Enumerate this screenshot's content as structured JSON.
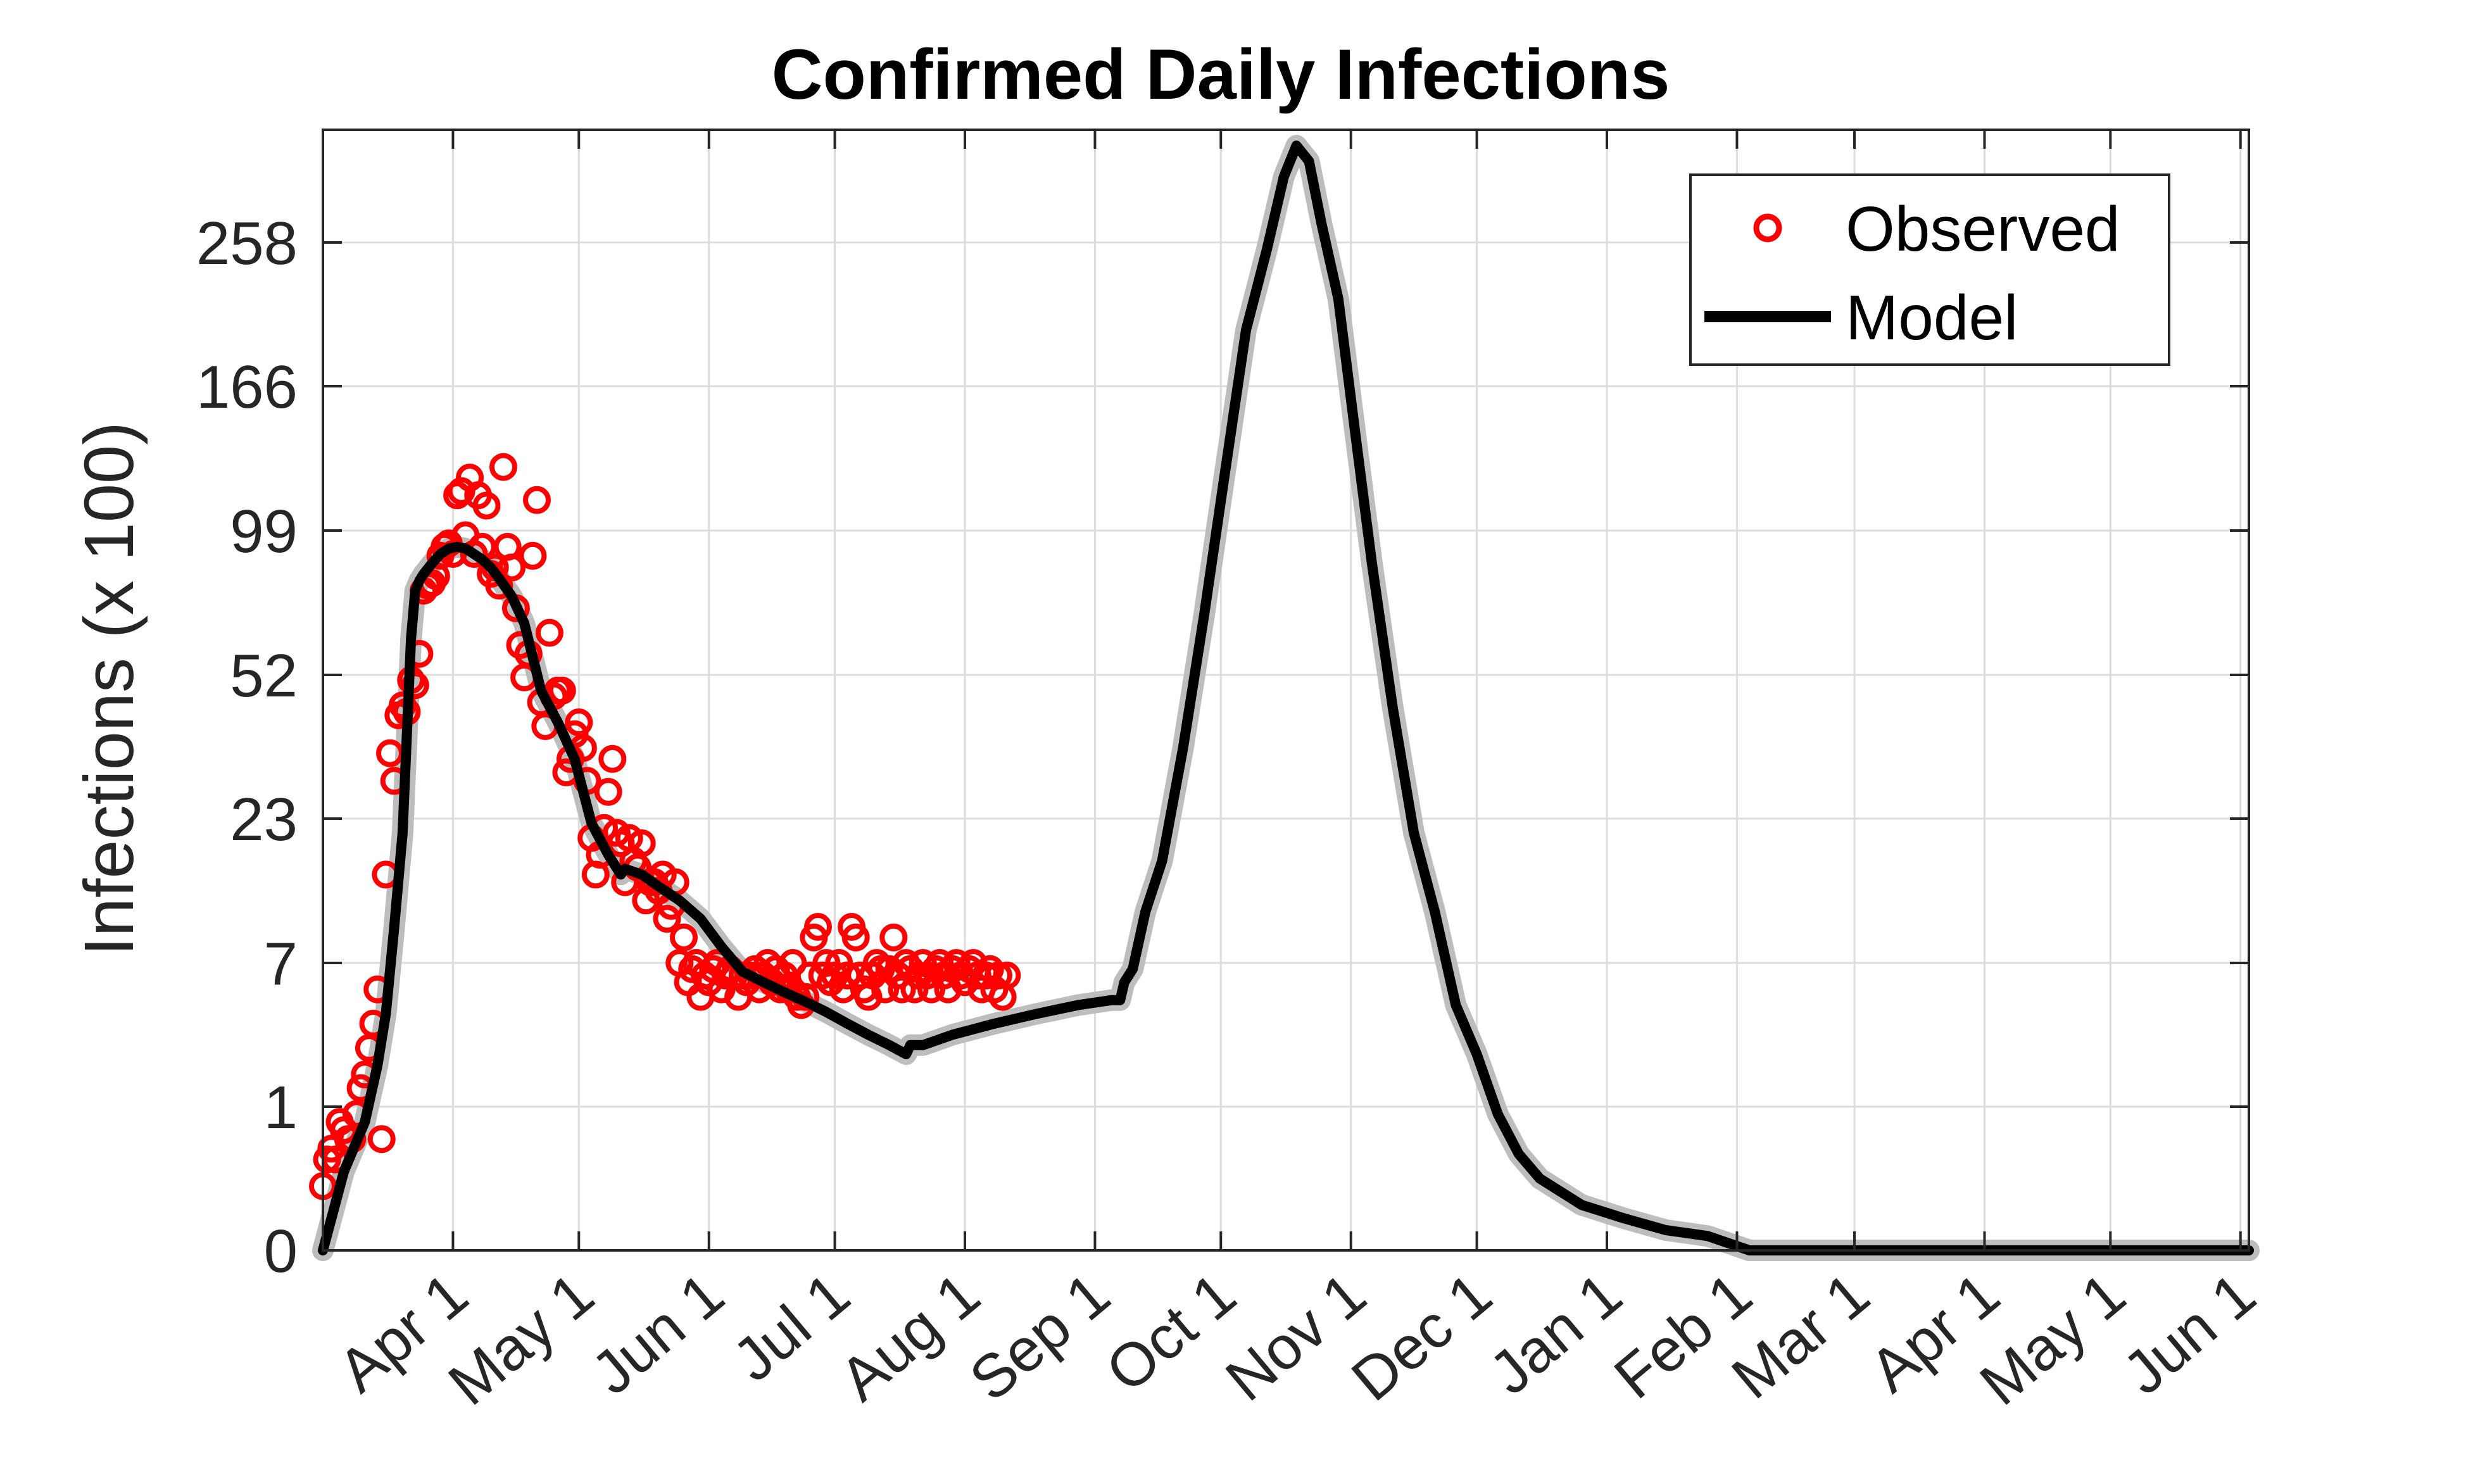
{
  "chart_data": {
    "type": "line",
    "title": "Confirmed Daily Infections",
    "xlabel": "",
    "ylabel": "Infections (x 100)",
    "y_tick_labels": [
      "0",
      "1",
      "7",
      "23",
      "52",
      "99",
      "166",
      "258"
    ],
    "y_tick_values": [
      0,
      1,
      7,
      23,
      52,
      99,
      166,
      258
    ],
    "y_scale_note": "axis is nonlinear (approximately square-root spacing); tick positions are evenly spaced",
    "x_axis_start_date": "2020-03-01",
    "x_axis_end_date": "2021-06-03",
    "x_tick_labels": [
      "Apr 1",
      "May 1",
      "Jun 1",
      "Jul 1",
      "Aug 1",
      "Sep 1",
      "Oct 1",
      "Nov 1",
      "Dec 1",
      "Jan 1",
      "Feb 1",
      "Mar 1",
      "Apr 1",
      "May 1",
      "Jun 1"
    ],
    "x_tick_days": [
      31,
      61,
      92,
      122,
      153,
      184,
      214,
      245,
      275,
      306,
      337,
      365,
      396,
      426,
      457
    ],
    "grid": true,
    "legend_position": "top-right",
    "series": [
      {
        "name": "Observed",
        "style": "red circles",
        "color": "#ff0000",
        "points": [
          [
            0,
            0.2
          ],
          [
            1,
            0.4
          ],
          [
            2,
            0.5
          ],
          [
            3,
            0.4
          ],
          [
            4,
            0.8
          ],
          [
            5,
            0.7
          ],
          [
            6,
            0.6
          ],
          [
            7,
            0.6
          ],
          [
            8,
            0.9
          ],
          [
            9,
            1.1
          ],
          [
            10,
            1.3
          ],
          [
            11,
            2
          ],
          [
            12,
            3
          ],
          [
            13,
            5
          ],
          [
            14,
            0.6
          ],
          [
            15,
            13
          ],
          [
            16,
            29
          ],
          [
            17,
            25
          ],
          [
            18,
            38
          ],
          [
            19,
            41
          ],
          [
            20,
            39
          ],
          [
            21,
            50
          ],
          [
            22,
            48
          ],
          [
            23,
            53
          ],
          [
            24,
            68
          ],
          [
            25,
            70
          ],
          [
            26,
            71
          ],
          [
            27,
            74
          ],
          [
            28,
            84
          ],
          [
            29,
            89
          ],
          [
            30,
            91
          ],
          [
            31,
            85
          ],
          [
            32,
            103
          ],
          [
            33,
            104
          ],
          [
            34,
            96
          ],
          [
            35,
            108
          ],
          [
            36,
            85
          ],
          [
            37,
            103
          ],
          [
            38,
            89
          ],
          [
            39,
            101
          ],
          [
            40,
            75
          ],
          [
            41,
            78
          ],
          [
            42,
            70
          ],
          [
            43,
            112
          ],
          [
            44,
            89
          ],
          [
            45,
            78
          ],
          [
            46,
            62
          ],
          [
            47,
            54
          ],
          [
            48,
            51
          ],
          [
            49,
            53
          ],
          [
            50,
            84
          ],
          [
            51,
            102
          ],
          [
            52,
            42
          ],
          [
            53,
            35
          ],
          [
            54,
            56
          ],
          [
            55,
            44
          ],
          [
            56,
            46
          ],
          [
            57,
            46
          ],
          [
            58,
            26
          ],
          [
            59,
            28
          ],
          [
            60,
            33
          ],
          [
            61,
            36
          ],
          [
            62,
            30
          ],
          [
            63,
            25
          ],
          [
            64,
            19
          ],
          [
            65,
            13
          ],
          [
            66,
            16
          ],
          [
            67,
            21
          ],
          [
            68,
            24
          ],
          [
            69,
            28
          ],
          [
            70,
            20
          ],
          [
            71,
            18
          ],
          [
            72,
            12
          ],
          [
            73,
            19
          ],
          [
            74,
            15
          ],
          [
            75,
            14
          ],
          [
            76,
            18
          ],
          [
            77,
            10
          ],
          [
            78,
            12
          ],
          [
            79,
            12
          ],
          [
            80,
            11
          ],
          [
            81,
            13
          ],
          [
            82,
            8.5
          ],
          [
            83,
            9.5
          ],
          [
            84,
            12
          ],
          [
            85,
            7
          ],
          [
            86,
            7.5
          ],
          [
            87,
            5.5
          ],
          [
            88,
            6.5
          ],
          [
            89,
            7
          ],
          [
            90,
            4.5
          ],
          [
            91,
            6
          ],
          [
            92,
            5.5
          ],
          [
            93,
            6.5
          ],
          [
            94,
            7
          ],
          [
            95,
            5
          ],
          [
            96,
            6
          ],
          [
            97,
            6.5
          ],
          [
            98,
            6
          ],
          [
            99,
            4.5
          ],
          [
            100,
            6
          ],
          [
            101,
            5.5
          ],
          [
            102,
            6
          ],
          [
            103,
            6.5
          ],
          [
            104,
            5
          ],
          [
            105,
            6
          ],
          [
            106,
            7
          ],
          [
            107,
            5.5
          ],
          [
            108,
            6.5
          ],
          [
            109,
            5
          ],
          [
            110,
            6
          ],
          [
            111,
            5
          ],
          [
            112,
            7
          ],
          [
            113,
            4.5
          ],
          [
            114,
            4
          ],
          [
            115,
            4.5
          ],
          [
            116,
            6
          ],
          [
            117,
            7.5
          ],
          [
            118,
            8
          ],
          [
            119,
            6
          ],
          [
            120,
            7
          ],
          [
            121,
            5.5
          ],
          [
            122,
            6
          ],
          [
            123,
            7
          ],
          [
            124,
            5
          ],
          [
            125,
            6
          ],
          [
            126,
            8
          ],
          [
            127,
            7.5
          ],
          [
            128,
            6
          ],
          [
            129,
            5
          ],
          [
            130,
            4.5
          ],
          [
            131,
            6
          ],
          [
            132,
            7
          ],
          [
            133,
            6.5
          ],
          [
            134,
            5
          ],
          [
            135,
            6.5
          ],
          [
            136,
            7.5
          ],
          [
            137,
            6
          ],
          [
            138,
            5
          ],
          [
            139,
            7
          ],
          [
            140,
            6.5
          ],
          [
            141,
            5
          ],
          [
            142,
            6
          ],
          [
            143,
            7
          ],
          [
            144,
            6
          ],
          [
            145,
            5
          ],
          [
            146,
            6.5
          ],
          [
            147,
            7
          ],
          [
            148,
            6
          ],
          [
            149,
            5
          ],
          [
            150,
            6.5
          ],
          [
            151,
            7
          ],
          [
            152,
            6
          ],
          [
            153,
            5.5
          ],
          [
            154,
            6.5
          ],
          [
            155,
            7
          ],
          [
            156,
            6
          ],
          [
            157,
            5
          ],
          [
            158,
            6
          ],
          [
            159,
            6.5
          ],
          [
            160,
            5
          ],
          [
            161,
            6
          ],
          [
            162,
            4.5
          ],
          [
            163,
            6
          ]
        ]
      },
      {
        "name": "Model",
        "style": "black solid line with grey confidence band",
        "color": "#000000",
        "band_color": "#bdbdbd",
        "points": [
          [
            0,
            0
          ],
          [
            5,
            0.3
          ],
          [
            10,
            0.8
          ],
          [
            13,
            1.5
          ],
          [
            15,
            3.5
          ],
          [
            17,
            8
          ],
          [
            19,
            20
          ],
          [
            21,
            55
          ],
          [
            22,
            68
          ],
          [
            23,
            72
          ],
          [
            24,
            75
          ],
          [
            26,
            80
          ],
          [
            28,
            85
          ],
          [
            30,
            88
          ],
          [
            32,
            89
          ],
          [
            34,
            88
          ],
          [
            36,
            85
          ],
          [
            38,
            82
          ],
          [
            40,
            78
          ],
          [
            42,
            73
          ],
          [
            45,
            66
          ],
          [
            48,
            58
          ],
          [
            52,
            46
          ],
          [
            56,
            36
          ],
          [
            60,
            28
          ],
          [
            64,
            22
          ],
          [
            68,
            16
          ],
          [
            71,
            13
          ],
          [
            72,
            13.8
          ],
          [
            76,
            13
          ],
          [
            80,
            11.5
          ],
          [
            85,
            10
          ],
          [
            90,
            8.5
          ],
          [
            95,
            7.2
          ],
          [
            100,
            6.3
          ],
          [
            105,
            5.5
          ],
          [
            110,
            4.8
          ],
          [
            115,
            4.2
          ],
          [
            120,
            3.6
          ],
          [
            125,
            3
          ],
          [
            130,
            2.5
          ],
          [
            135,
            2.1
          ],
          [
            139,
            1.8
          ],
          [
            140,
            2.1
          ],
          [
            143,
            2.1
          ],
          [
            150,
            2.5
          ],
          [
            160,
            3
          ],
          [
            170,
            3.5
          ],
          [
            180,
            4
          ],
          [
            188,
            4.3
          ],
          [
            190,
            4.3
          ],
          [
            191,
            5.5
          ],
          [
            193,
            6.5
          ],
          [
            196,
            9
          ],
          [
            200,
            15
          ],
          [
            205,
            30
          ],
          [
            210,
            60
          ],
          [
            215,
            110
          ],
          [
            220,
            180
          ],
          [
            225,
            250
          ],
          [
            229,
            300
          ],
          [
            232,
            320
          ],
          [
            235,
            310
          ],
          [
            238,
            270
          ],
          [
            242,
            200
          ],
          [
            246,
            130
          ],
          [
            250,
            80
          ],
          [
            255,
            40
          ],
          [
            260,
            20
          ],
          [
            265,
            9
          ],
          [
            270,
            4
          ],
          [
            275,
            1.8
          ],
          [
            280,
            0.9
          ],
          [
            285,
            0.45
          ],
          [
            290,
            0.25
          ],
          [
            300,
            0.1
          ],
          [
            310,
            0.05
          ],
          [
            320,
            0.02
          ],
          [
            330,
            0.01
          ],
          [
            340,
            0
          ],
          [
            350,
            0
          ],
          [
            400,
            0
          ],
          [
            459,
            0
          ]
        ]
      }
    ]
  }
}
